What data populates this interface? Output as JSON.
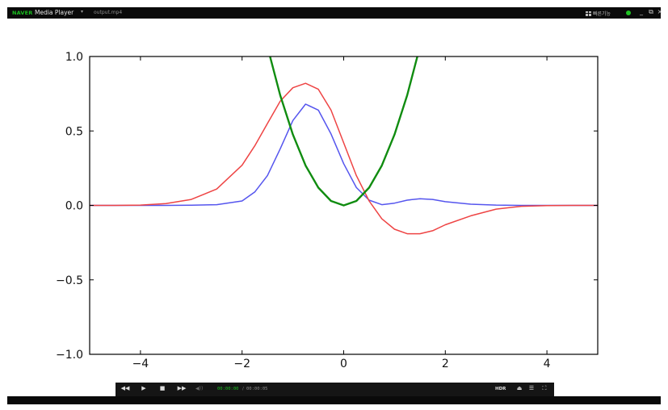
{
  "titlebar": {
    "brand": "NAVER",
    "app_name": "Media Player",
    "menu_chevron": "▾",
    "file_name": "output.mp4",
    "quick_menu_label": "빠른기능",
    "status_dot_color": "#1fc323",
    "minimize": "_",
    "restore": "⧉",
    "close": "×"
  },
  "controls": {
    "rewind": "◀◀",
    "play": "▶",
    "stop": "■",
    "forward": "▶▶",
    "volume": "◀))",
    "current_time": "00:00:00",
    "separator": "/",
    "total_time": "00:00:05",
    "hdr_label": "HDR",
    "eject": "⏏",
    "playlist": "☰",
    "fullscreen": "⛶"
  },
  "chart_data": {
    "type": "line",
    "xlim": [
      -5,
      5
    ],
    "ylim": [
      -1.0,
      1.0
    ],
    "xticks": [
      "−4",
      "−2",
      "0",
      "2",
      "4"
    ],
    "xtick_values": [
      -4,
      -2,
      0,
      2,
      4
    ],
    "yticks": [
      "1.0",
      "0.5",
      "0.0",
      "−0.5",
      "−1.0"
    ],
    "ytick_values": [
      1.0,
      0.5,
      0.0,
      -0.5,
      -1.0
    ],
    "grid": false,
    "series": [
      {
        "color": "#5555ee",
        "x": [
          -5,
          -4.5,
          -4,
          -3.5,
          -3,
          -2.5,
          -2,
          -1.75,
          -1.5,
          -1.25,
          -1,
          -0.75,
          -0.5,
          -0.25,
          0,
          0.25,
          0.5,
          0.75,
          1,
          1.25,
          1.5,
          1.75,
          2,
          2.5,
          3,
          3.5,
          4,
          4.5,
          5
        ],
        "y": [
          0,
          0,
          0,
          0,
          0.001,
          0.005,
          0.03,
          0.09,
          0.2,
          0.38,
          0.57,
          0.68,
          0.64,
          0.48,
          0.28,
          0.12,
          0.035,
          0.005,
          0.015,
          0.035,
          0.045,
          0.04,
          0.025,
          0.008,
          0.002,
          0,
          0,
          0,
          0
        ]
      },
      {
        "color": "#ee4444",
        "x": [
          -5,
          -4.5,
          -4,
          -3.5,
          -3,
          -2.5,
          -2,
          -1.75,
          -1.5,
          -1.25,
          -1,
          -0.75,
          -0.5,
          -0.25,
          0,
          0.25,
          0.5,
          0.75,
          1,
          1.25,
          1.5,
          1.75,
          2,
          2.5,
          3,
          3.5,
          4,
          4.5,
          5
        ],
        "y": [
          0,
          0,
          0.002,
          0.012,
          0.04,
          0.11,
          0.27,
          0.4,
          0.55,
          0.7,
          0.79,
          0.82,
          0.78,
          0.64,
          0.42,
          0.2,
          0.03,
          -0.09,
          -0.16,
          -0.19,
          -0.19,
          -0.17,
          -0.13,
          -0.07,
          -0.025,
          -0.006,
          -0.001,
          0,
          0
        ]
      },
      {
        "color": "#108c10",
        "x": [
          -1.45,
          -1.25,
          -1.0,
          -0.75,
          -0.5,
          -0.25,
          0,
          0.25,
          0.5,
          0.75,
          1.0,
          1.25,
          1.45
        ],
        "y": [
          1.0,
          0.74,
          0.476,
          0.268,
          0.119,
          0.03,
          0,
          0.03,
          0.119,
          0.268,
          0.476,
          0.74,
          1.0
        ]
      }
    ]
  }
}
